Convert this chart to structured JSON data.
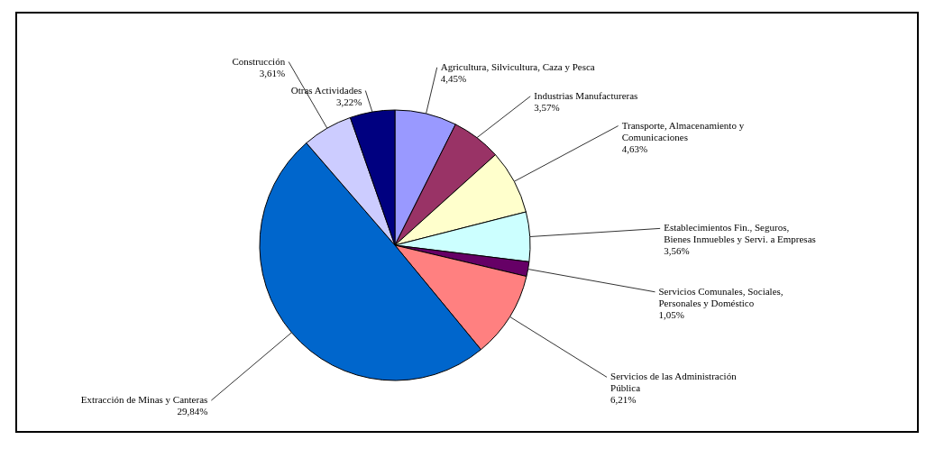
{
  "chart_data": {
    "type": "pie",
    "categories": [
      "Agricultura, Silvicultura, Caza y Pesca",
      "Industrias  Manufactureras",
      "Transporte, Almacenamiento y\nComunicaciones",
      "Establecimientos Fin., Seguros,\nBienes Inmuebles y Servi. a Empresas",
      "Servicios Comunales, Sociales,\nPersonales y Doméstico",
      "Servicios de las Administración\nPública",
      "Extracción de Minas y Canteras",
      "Construcción",
      "Otras Actividades"
    ],
    "values": [
      4.45,
      3.57,
      4.63,
      3.56,
      1.05,
      6.21,
      29.84,
      3.61,
      3.22
    ],
    "value_labels": [
      "4,45%",
      "3,57%",
      "4,63%",
      "3,56%",
      "1,05%",
      "6,21%",
      "29,84%",
      "3,61%",
      "3,22%"
    ],
    "colors": [
      "#9999ff",
      "#993366",
      "#ffffcc",
      "#ccffff",
      "#660066",
      "#ff8080",
      "#0066cc",
      "#ccccff",
      "#000080"
    ],
    "legend": false
  }
}
